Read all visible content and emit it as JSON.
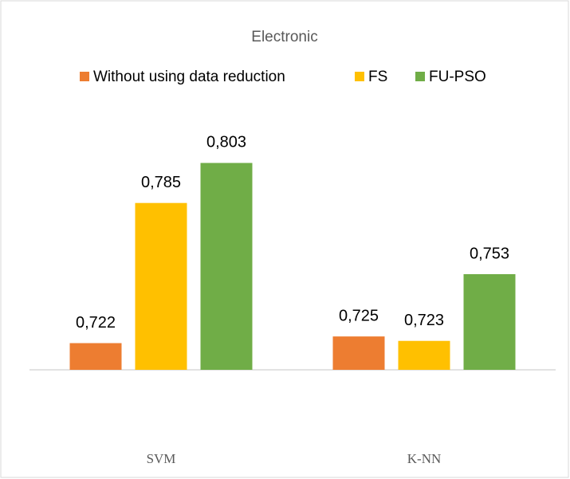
{
  "chart_data": {
    "type": "bar",
    "title": "Electronic",
    "categories": [
      "SVM",
      "K-NN"
    ],
    "series": [
      {
        "name": "Without using data reduction",
        "color": "#ed7d31",
        "values": [
          0.722,
          0.725
        ],
        "value_labels": [
          "0,722",
          "0,725"
        ]
      },
      {
        "name": "FS",
        "color": "#ffc000",
        "values": [
          0.785,
          0.723
        ],
        "value_labels": [
          "0,785",
          "0,723"
        ]
      },
      {
        "name": "FU-PSO",
        "color": "#70ad47",
        "values": [
          0.803,
          0.753
        ],
        "value_labels": [
          "0,803",
          "0,753"
        ]
      }
    ],
    "ylim": [
      0.71,
      0.82
    ],
    "legend": "top"
  }
}
